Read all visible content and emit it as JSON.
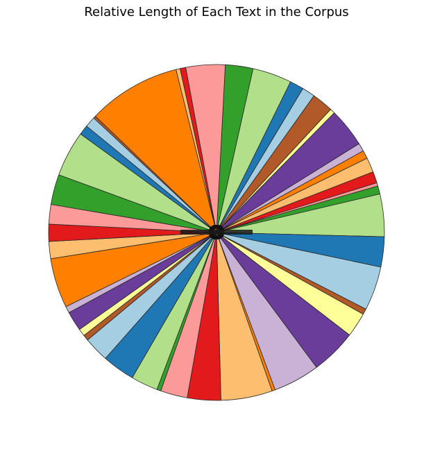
{
  "chart_data": {
    "type": "pie",
    "title": "Relative Length of Each Text in the Corpus",
    "start_angle_deg": 87,
    "direction": "clockwise",
    "colormap": "Paired",
    "colors": [
      "#a6cee3",
      "#1f78b4",
      "#b2df8a",
      "#33a02c",
      "#fb9a99",
      "#e31a1c",
      "#fdbf6f",
      "#ff7f00",
      "#cab2d6",
      "#6a3d9a",
      "#ffff99",
      "#b15928"
    ],
    "slices": [
      {
        "value": 3.4,
        "color": "#33a02c"
      },
      {
        "value": 4.8,
        "color": "#b2df8a"
      },
      {
        "value": 1.7,
        "color": "#1f78b4"
      },
      {
        "value": 1.6,
        "color": "#a6cee3"
      },
      {
        "value": 2.6,
        "color": "#b15928"
      },
      {
        "value": 0.6,
        "color": "#ffff99"
      },
      {
        "value": 4.8,
        "color": "#6a3d9a"
      },
      {
        "value": 1.0,
        "color": "#cab2d6"
      },
      {
        "value": 1.0,
        "color": "#ff7f00"
      },
      {
        "value": 1.8,
        "color": "#fdbf6f"
      },
      {
        "value": 1.4,
        "color": "#e31a1c"
      },
      {
        "value": 0.4,
        "color": "#fb9a99"
      },
      {
        "value": 1.0,
        "color": "#33a02c"
      },
      {
        "value": 5.2,
        "color": "#b2df8a"
      },
      {
        "value": 3.7,
        "color": "#1f78b4"
      },
      {
        "value": 5.4,
        "color": "#a6cee3"
      },
      {
        "value": 0.7,
        "color": "#b15928"
      },
      {
        "value": 3.0,
        "color": "#ffff99"
      },
      {
        "value": 5.6,
        "color": "#6a3d9a"
      },
      {
        "value": 5.7,
        "color": "#cab2d6"
      },
      {
        "value": 0.4,
        "color": "#ff7f00"
      },
      {
        "value": 6.3,
        "color": "#fdbf6f"
      },
      {
        "value": 4.1,
        "color": "#e31a1c"
      },
      {
        "value": 3.3,
        "color": "#fb9a99"
      },
      {
        "value": 0.5,
        "color": "#33a02c"
      },
      {
        "value": 3.3,
        "color": "#b2df8a"
      },
      {
        "value": 4.0,
        "color": "#1f78b4"
      },
      {
        "value": 3.1,
        "color": "#a6cee3"
      },
      {
        "value": 0.7,
        "color": "#b15928"
      },
      {
        "value": 0.9,
        "color": "#ffff99"
      },
      {
        "value": 2.4,
        "color": "#6a3d9a"
      },
      {
        "value": 0.8,
        "color": "#cab2d6"
      },
      {
        "value": 6.1,
        "color": "#ff7f00"
      },
      {
        "value": 2.1,
        "color": "#fdbf6f"
      },
      {
        "value": 2.1,
        "color": "#e31a1c"
      },
      {
        "value": 2.4,
        "color": "#fb9a99"
      },
      {
        "value": 3.7,
        "color": "#33a02c"
      },
      {
        "value": 5.6,
        "color": "#b2df8a"
      },
      {
        "value": 1.2,
        "color": "#1f78b4"
      },
      {
        "value": 1.3,
        "color": "#a6cee3"
      },
      {
        "value": 0.3,
        "color": "#b15928"
      },
      {
        "value": 11.4,
        "color": "#ff7f00"
      },
      {
        "value": 0.5,
        "color": "#fdbf6f"
      },
      {
        "value": 0.7,
        "color": "#e31a1c"
      },
      {
        "value": 4.8,
        "color": "#fb9a99"
      }
    ],
    "labels_note": "slice labels are drawn overlapping at the pie center and are not legible"
  }
}
